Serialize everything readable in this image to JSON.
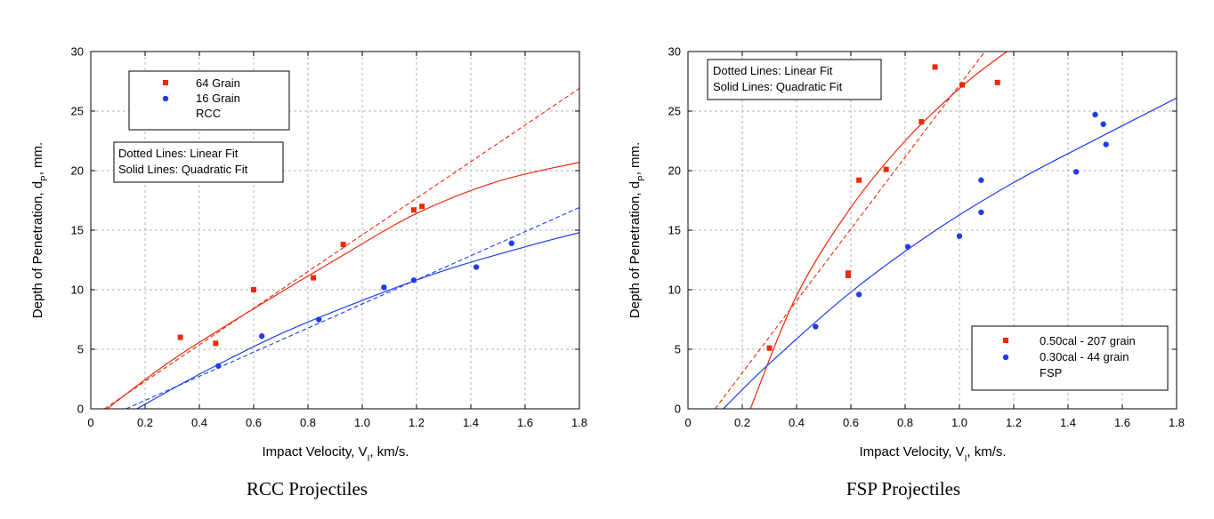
{
  "colors": {
    "series_a": "#f0280a",
    "series_b": "#1e3cf0",
    "grid": "#b4b4b4"
  },
  "chart_data": [
    {
      "type": "scatter",
      "caption": "RCC Projectiles",
      "xlabel": "Impact Velocity, V",
      "xlabel_sub": "I",
      "xlabel_tail": ", km/s.",
      "ylabel": "Depth of Penetration, d",
      "ylabel_sub": "P",
      "ylabel_tail": ", mm.",
      "xlim": [
        0,
        1.8
      ],
      "ylim": [
        0,
        30
      ],
      "xticks": [
        "0",
        "0.2",
        "0.4",
        "0.6",
        "0.8",
        "1.0",
        "1.2",
        "1.4",
        "1.6",
        "1.8"
      ],
      "yticks": [
        "0",
        "5",
        "10",
        "15",
        "20",
        "25",
        "30"
      ],
      "grid": true,
      "legend": {
        "position": "top-left",
        "entries": [
          "64 Grain",
          "16 Grain"
        ],
        "extra": "RCC"
      },
      "note": [
        "Dotted Lines:  Linear Fit",
        "Solid Lines:  Quadratic Fit"
      ],
      "note_position": "upper-left",
      "series": [
        {
          "name": "64 Grain",
          "color": "#f0280a",
          "marker": "square",
          "x": [
            0.33,
            0.46,
            0.6,
            0.82,
            0.93,
            1.19,
            1.22
          ],
          "y": [
            6.0,
            5.5,
            10.0,
            11.0,
            13.8,
            16.7,
            17.0
          ],
          "linear_fit": [
            [
              0.05,
              0
            ],
            [
              1.8,
              26.9
            ]
          ],
          "quadratic_fit": [
            [
              0.06,
              0
            ],
            [
              0.3,
              4.1
            ],
            [
              0.6,
              8.4
            ],
            [
              0.9,
              12.5
            ],
            [
              1.2,
              16.4
            ],
            [
              1.5,
              19.1
            ],
            [
              1.8,
              20.7
            ]
          ]
        },
        {
          "name": "16 Grain",
          "color": "#1e3cf0",
          "marker": "circle",
          "x": [
            0.47,
            0.63,
            0.84,
            1.08,
            1.19,
            1.42,
            1.55
          ],
          "y": [
            3.6,
            6.1,
            7.5,
            10.2,
            10.8,
            11.9,
            13.9
          ],
          "linear_fit": [
            [
              0.13,
              0
            ],
            [
              1.8,
              16.9
            ]
          ],
          "quadratic_fit": [
            [
              0.17,
              0
            ],
            [
              0.4,
              2.9
            ],
            [
              0.7,
              6.3
            ],
            [
              1.0,
              9.1
            ],
            [
              1.3,
              11.6
            ],
            [
              1.6,
              13.6
            ],
            [
              1.8,
              14.8
            ]
          ]
        }
      ]
    },
    {
      "type": "scatter",
      "caption": "FSP Projectiles",
      "xlabel": "Impact Velocity, V",
      "xlabel_sub": "I",
      "xlabel_tail": ", km/s.",
      "ylabel": "Depth of Penetration, d",
      "ylabel_sub": "P",
      "ylabel_tail": ", mm.",
      "xlim": [
        0,
        1.8
      ],
      "ylim": [
        0,
        30
      ],
      "xticks": [
        "0",
        "0.2",
        "0.4",
        "0.6",
        "0.8",
        "1.0",
        "1.2",
        "1.4",
        "1.6",
        "1.8"
      ],
      "yticks": [
        "0",
        "5",
        "10",
        "15",
        "20",
        "25",
        "30"
      ],
      "grid": true,
      "legend": {
        "position": "bottom-right",
        "entries": [
          "0.50cal - 207 grain",
          "0.30cal - 44 grain"
        ],
        "extra": "FSP"
      },
      "note": [
        "Dotted Lines:  Linear Fit",
        "Solid Lines:  Quadratic Fit"
      ],
      "note_position": "top-left",
      "series": [
        {
          "name": "0.50cal - 207 grain",
          "color": "#f0280a",
          "marker": "square",
          "x": [
            0.3,
            0.59,
            0.59,
            0.63,
            0.73,
            0.86,
            0.91,
            1.01,
            1.14
          ],
          "y": [
            5.1,
            11.4,
            11.2,
            19.2,
            20.1,
            24.1,
            28.7,
            27.2,
            27.4
          ],
          "linear_fit": [
            [
              0.1,
              0
            ],
            [
              1.1,
              30.2
            ]
          ],
          "quadratic_fit": [
            [
              0.23,
              0
            ],
            [
              0.4,
              9.5
            ],
            [
              0.6,
              16.9
            ],
            [
              0.8,
              22.5
            ],
            [
              1.0,
              26.9
            ],
            [
              1.15,
              29.6
            ],
            [
              1.2,
              30.3
            ]
          ]
        },
        {
          "name": "0.30cal - 44 grain",
          "color": "#1e3cf0",
          "marker": "circle",
          "x": [
            0.47,
            0.63,
            0.81,
            1.0,
            1.08,
            1.08,
            1.43,
            1.5,
            1.53,
            1.54
          ],
          "y": [
            6.9,
            9.6,
            13.6,
            14.5,
            16.5,
            19.2,
            19.9,
            24.7,
            23.9,
            22.2
          ],
          "linear_fit": [],
          "quadratic_fit": [
            [
              0.13,
              0
            ],
            [
              0.3,
              3.8
            ],
            [
              0.6,
              9.8
            ],
            [
              0.9,
              14.8
            ],
            [
              1.2,
              19.0
            ],
            [
              1.5,
              22.6
            ],
            [
              1.8,
              26.1
            ]
          ]
        }
      ]
    }
  ]
}
